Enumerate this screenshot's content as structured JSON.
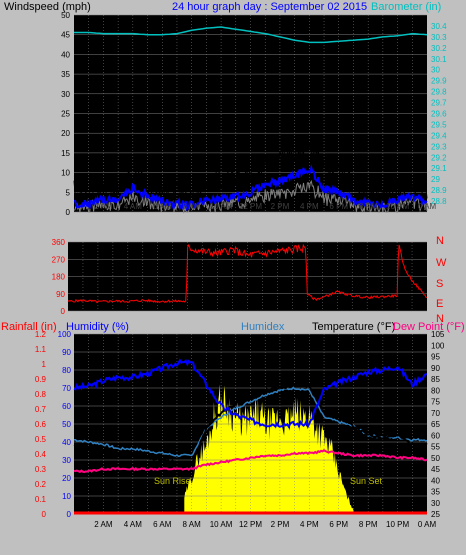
{
  "header": {
    "windspeed_label": "Windspeed (mph)",
    "title": "24 hour graph day : September 02 2015",
    "barometer_label": "Barometer (in)"
  },
  "colors": {
    "background": "#c0c0c0",
    "plot_bg": "#000000",
    "grid": "#808080",
    "wind_gust": "#000000",
    "wind_avg": "#0000ff",
    "wind_gray": "#808080",
    "barometer": "#00c0c0",
    "direction": "#ff0000",
    "humidity": "#0000ff",
    "humidex": "#3080c0",
    "temperature": "#000000",
    "dew_point": "#ff0080",
    "solar": "#ffff00",
    "rain": "#ff0000",
    "sun_label": "#c0c000"
  },
  "time_labels": [
    "2 AM",
    "4 AM",
    "6 AM",
    "8 AM",
    "10 AM",
    "12 PM",
    "2 PM",
    "4 PM",
    "6 PM",
    "8 PM",
    "10 PM",
    "0 AM"
  ],
  "chart_data": [
    {
      "type": "line",
      "name": "wind-barometer",
      "title": "24 hour graph day : September 02 2015",
      "ylabel": "Windspeed (mph)",
      "ylabel_right": "Barometer (in)",
      "ylim": [
        0,
        50
      ],
      "y_ticks": [
        0,
        5,
        10,
        15,
        20,
        25,
        30,
        35,
        40,
        45,
        50
      ],
      "ylim_right": [
        28.7,
        30.5
      ],
      "y_ticks_right": [
        "28.8",
        "28.9",
        "29",
        "29.1",
        "29.2",
        "29.3",
        "29.4",
        "29.5",
        "29.6",
        "29.7",
        "29.8",
        "29.9",
        "30",
        "30.1",
        "30.2",
        "30.3",
        "30.4"
      ],
      "x_hours": [
        0,
        1,
        2,
        3,
        4,
        5,
        6,
        7,
        8,
        9,
        10,
        11,
        12,
        13,
        14,
        15,
        16,
        17,
        18,
        19,
        20,
        21,
        22,
        23,
        24
      ],
      "series": [
        {
          "values": [
            5,
            4,
            6,
            5,
            9,
            6,
            5,
            4,
            5,
            6,
            7,
            8,
            10,
            12,
            13,
            14,
            17,
            11,
            9,
            6,
            5,
            5,
            6,
            7,
            5
          ]
        },
        {
          "values": [
            2,
            2,
            3,
            3,
            6,
            4,
            3,
            2,
            2,
            3,
            3,
            4,
            5,
            7,
            8,
            9,
            11,
            6,
            5,
            3,
            2,
            2,
            3,
            4,
            3
          ]
        },
        {
          "values": [
            30.34,
            30.34,
            30.33,
            30.33,
            30.33,
            30.32,
            30.32,
            30.33,
            30.36,
            30.38,
            30.39,
            30.37,
            30.35,
            30.33,
            30.3,
            30.27,
            30.25,
            30.25,
            30.26,
            30.27,
            30.28,
            30.3,
            30.31,
            30.33,
            30.32
          ]
        }
      ]
    },
    {
      "type": "line",
      "name": "wind-direction",
      "ylim": [
        0,
        360
      ],
      "y_ticks": [
        0,
        90,
        180,
        270,
        360
      ],
      "compass_labels": [
        "N",
        "W",
        "S",
        "E",
        "N"
      ],
      "x_hours": [
        0,
        1,
        2,
        3,
        4,
        5,
        6,
        7,
        7.9,
        8.0,
        9,
        10,
        11,
        12,
        13,
        14,
        15,
        15.9,
        16.0,
        16.5,
        17,
        18,
        19,
        20,
        21,
        22,
        22.1,
        22.5,
        23,
        24
      ],
      "series": [
        {
          "values": [
            50,
            55,
            48,
            52,
            50,
            55,
            50,
            52,
            50,
            330,
            310,
            300,
            320,
            290,
            300,
            310,
            320,
            330,
            90,
            60,
            70,
            100,
            80,
            70,
            75,
            80,
            350,
            220,
            160,
            70
          ]
        }
      ]
    },
    {
      "type": "line",
      "name": "temp-humidity-rain",
      "ylabel_left": "Rainfall (in)",
      "ylabel_humidity": "Humidity (%)",
      "ylabel_humidex": "Humidex",
      "ylabel_temperature": "Temperature (°F)",
      "ylabel_dewpoint": "Dew Point (°F)",
      "rain_ylim": [
        0,
        1.2
      ],
      "rain_ticks": [
        "0",
        "0.1",
        "0.2",
        "0.3",
        "0.4",
        "0.5",
        "0.6",
        "0.7",
        "0.8",
        "0.9",
        "1",
        "1.1",
        "1.2"
      ],
      "humidity_ylim": [
        0,
        100
      ],
      "humidity_ticks": [
        0,
        10,
        20,
        30,
        40,
        50,
        60,
        70,
        80,
        90,
        100
      ],
      "temp_ylim": [
        25,
        105
      ],
      "temp_ticks": [
        25,
        30,
        35,
        40,
        45,
        50,
        55,
        60,
        65,
        70,
        75,
        80,
        85,
        90,
        95,
        100,
        105
      ],
      "annotations": [
        "Sun Rise",
        "Sun Set"
      ],
      "x_hours": [
        0,
        1,
        2,
        3,
        4,
        5,
        6,
        7,
        8,
        9,
        10,
        11,
        12,
        13,
        14,
        15,
        16,
        17,
        18,
        19,
        20,
        21,
        22,
        23,
        24
      ],
      "series": [
        {
          "values": [
            70,
            71,
            74,
            76,
            76,
            78,
            81,
            84,
            84,
            72,
            60,
            55,
            52,
            50,
            50,
            50,
            50,
            69,
            73,
            76,
            79,
            80,
            82,
            72,
            78
          ]
        },
        {
          "values": [
            55,
            54,
            53,
            51,
            51,
            50,
            49,
            48,
            47,
            63,
            70,
            74,
            77,
            80,
            81,
            82,
            82,
            70,
            68,
            64,
            60,
            59,
            60,
            56,
            56
          ]
        },
        {
          "values": [
            58,
            57,
            56,
            54,
            54,
            53,
            52,
            51,
            51,
            63,
            68,
            72,
            75,
            78,
            80,
            81,
            80,
            68,
            66,
            64,
            60,
            59,
            59,
            58,
            58
          ]
        },
        {
          "values": [
            44,
            44,
            45,
            45,
            45,
            45,
            45,
            45,
            45,
            47,
            48,
            49,
            50,
            51,
            51,
            52,
            52,
            53,
            52,
            51,
            51,
            51,
            50,
            50,
            49
          ]
        },
        {
          "values": [
            0,
            0,
            0,
            0,
            0,
            0,
            0,
            0,
            0,
            0,
            0,
            0,
            0,
            0,
            0,
            0,
            0,
            0,
            0,
            0,
            0,
            0,
            0,
            0,
            0
          ]
        },
        {
          "x_hours": [
            7.5,
            8,
            8.5,
            9,
            9.5,
            10,
            10.5,
            11,
            11.5,
            12,
            12.5,
            13,
            13.5,
            14,
            14.5,
            15,
            15.5,
            16,
            16.5,
            17,
            17.5,
            18,
            18.5,
            19
          ],
          "values": [
            10,
            22,
            35,
            41,
            58,
            68,
            64,
            58,
            55,
            57,
            60,
            55,
            54,
            58,
            55,
            60,
            57,
            60,
            52,
            45,
            38,
            25,
            12,
            2
          ]
        }
      ]
    }
  ]
}
